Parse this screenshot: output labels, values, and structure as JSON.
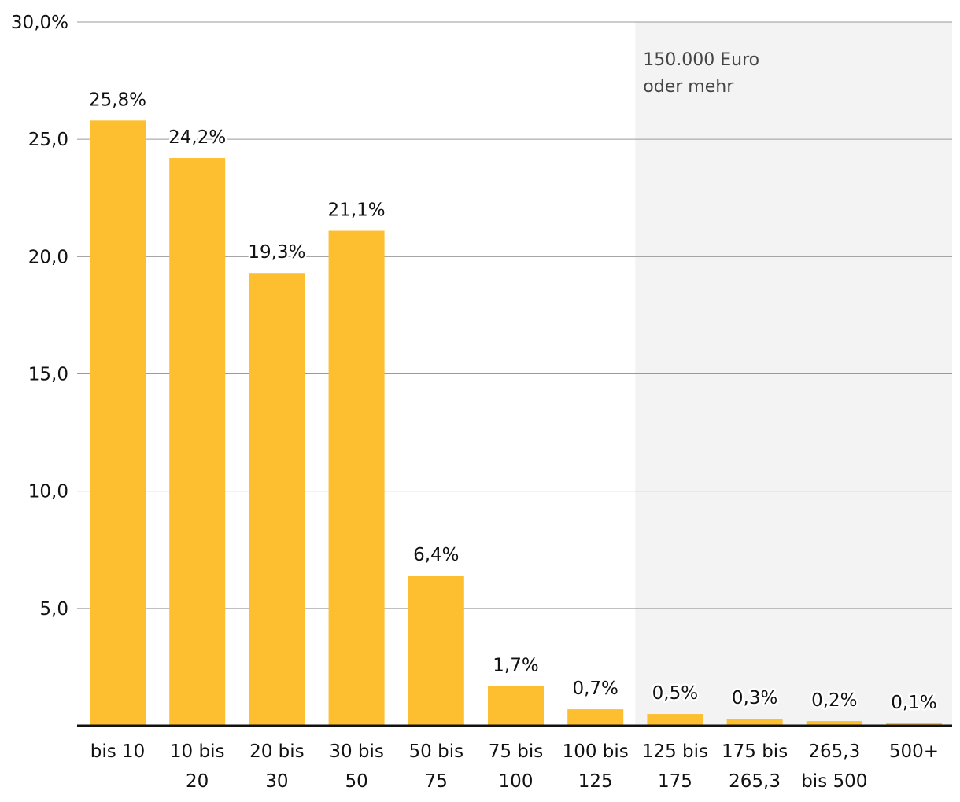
{
  "chart_data": {
    "type": "bar",
    "title": "",
    "xlabel": "",
    "ylabel": "",
    "ylim": [
      0,
      30
    ],
    "yticks": [
      "5,0",
      "10,0",
      "15,0",
      "20,0",
      "25,0",
      "30,0%"
    ],
    "grid": true,
    "bar_color": "#FDBE2F",
    "categories": [
      [
        "bis 10"
      ],
      [
        "10 bis",
        "20"
      ],
      [
        "20 bis",
        "30"
      ],
      [
        "30 bis",
        "50"
      ],
      [
        "50 bis",
        "75"
      ],
      [
        "75 bis",
        "100"
      ],
      [
        "100 bis",
        "125"
      ],
      [
        "125 bis",
        "175"
      ],
      [
        "175 bis",
        "265,3"
      ],
      [
        "265,3",
        "bis 500"
      ],
      [
        "500+"
      ]
    ],
    "values": [
      25.8,
      24.2,
      19.3,
      21.1,
      6.4,
      1.7,
      0.7,
      0.5,
      0.3,
      0.2,
      0.1
    ],
    "data_labels": [
      "25,8%",
      "24,2%",
      "19,3%",
      "21,1%",
      "6,4%",
      "1,7%",
      "0,7%",
      "0,5%",
      "0,3%",
      "0,2%",
      "0,1%"
    ],
    "highlight_region": {
      "from_category_index": 7,
      "color": "#F3F3F3",
      "label": [
        "150.000 Euro",
        "oder mehr"
      ]
    }
  }
}
